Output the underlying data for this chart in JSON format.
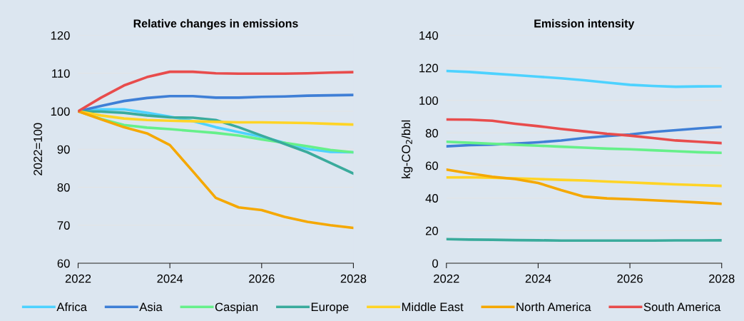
{
  "chart_data": [
    {
      "type": "line",
      "title": "Relative changes in emissions",
      "ylabel": "2022=100",
      "x": [
        2022,
        2022.5,
        2023,
        2023.5,
        2024,
        2024.5,
        2025,
        2025.5,
        2026,
        2026.5,
        2027,
        2027.5,
        2028
      ],
      "xlim": [
        2022,
        2028
      ],
      "xticks": [
        2022,
        2024,
        2026,
        2028
      ],
      "ylim": [
        60,
        120
      ],
      "yticks": [
        60,
        70,
        80,
        90,
        100,
        110,
        120
      ],
      "grid": "y",
      "legend": "bottom",
      "line_style": "solid",
      "marker": "none",
      "series": [
        {
          "name": "Africa",
          "color": "#4dd2ff",
          "values": [
            100,
            100.5,
            100.5,
            99.6,
            98.6,
            97.4,
            95.8,
            94.5,
            93.3,
            91.7,
            90.1,
            89.3,
            89.2
          ]
        },
        {
          "name": "Asia",
          "color": "#3f7fd6",
          "values": [
            100,
            101.4,
            102.7,
            103.5,
            104,
            104,
            103.6,
            103.6,
            103.8,
            103.9,
            104.1,
            104.2,
            104.3
          ]
        },
        {
          "name": "Caspian",
          "color": "#66f08a",
          "values": [
            100,
            98,
            96.4,
            95.7,
            95.3,
            94.8,
            94.3,
            93.6,
            92.6,
            91.7,
            90.8,
            89.8,
            89.2
          ]
        },
        {
          "name": "Europe",
          "color": "#3aab9c",
          "values": [
            100,
            99.9,
            99.6,
            98.9,
            98.4,
            98.3,
            97.7,
            95.8,
            93.6,
            91.4,
            89.2,
            86.4,
            83.6
          ]
        },
        {
          "name": "Middle East",
          "color": "#ffd426",
          "values": [
            100,
            98.9,
            98.1,
            97.7,
            97.5,
            97.4,
            97.2,
            97.1,
            97.1,
            97,
            96.9,
            96.7,
            96.5
          ]
        },
        {
          "name": "North America",
          "color": "#f5a800",
          "values": [
            100,
            97.9,
            95.8,
            94.2,
            91.1,
            84.2,
            77.2,
            74.7,
            74,
            72.2,
            70.9,
            70,
            69.3
          ]
        },
        {
          "name": "South America",
          "color": "#e84c4c",
          "values": [
            100,
            103.6,
            106.8,
            109,
            110.4,
            110.4,
            110,
            109.9,
            109.9,
            109.9,
            110,
            110.2,
            110.3
          ]
        }
      ]
    },
    {
      "type": "line",
      "title": "Emission intensity",
      "ylabel": "kg-CO$_{2}$/bbl",
      "x": [
        2022,
        2022.5,
        2023,
        2023.5,
        2024,
        2024.5,
        2025,
        2025.5,
        2026,
        2026.5,
        2027,
        2027.5,
        2028
      ],
      "xlim": [
        2022,
        2028
      ],
      "xticks": [
        2022,
        2024,
        2026,
        2028
      ],
      "ylim": [
        0,
        140
      ],
      "yticks": [
        0,
        20,
        40,
        60,
        80,
        100,
        120,
        140
      ],
      "grid": "y",
      "line_style": "solid",
      "marker": "none",
      "series": [
        {
          "color": "#4dd2ff",
          "values": [
            118.1,
            117.5,
            116.5,
            115.6,
            114.6,
            113.6,
            112.4,
            111,
            109.6,
            108.9,
            108.4,
            108.6,
            108.7
          ]
        },
        {
          "color": "#3f7fd6",
          "values": [
            71.8,
            72.5,
            72.9,
            73.5,
            74.3,
            75.4,
            76.9,
            78.1,
            79.1,
            80.6,
            81.7,
            82.8,
            83.8
          ]
        },
        {
          "color": "#66f08a",
          "values": [
            74.6,
            74,
            73.4,
            72.8,
            72.2,
            71.6,
            71,
            70.4,
            70,
            69.4,
            68.8,
            68.2,
            67.8
          ]
        },
        {
          "color": "#3aab9c",
          "values": [
            14.8,
            14.5,
            14.4,
            14.2,
            14.1,
            13.9,
            13.9,
            13.9,
            13.9,
            13.9,
            14,
            14,
            14.1
          ]
        },
        {
          "color": "#ffd426",
          "values": [
            52.7,
            52.8,
            52.5,
            52.1,
            51.7,
            51.2,
            50.8,
            50.2,
            49.6,
            49,
            48.4,
            48,
            47.5
          ]
        },
        {
          "color": "#f5a800",
          "values": [
            57.5,
            55.2,
            53.1,
            51.7,
            49.3,
            44.9,
            40.9,
            39.8,
            39.3,
            38.7,
            38,
            37.3,
            36.5
          ]
        },
        {
          "color": "#e84c4c",
          "values": [
            88.3,
            88.2,
            87.5,
            85.7,
            84.2,
            82.5,
            81,
            79.5,
            78.4,
            76.9,
            75.4,
            74.6,
            73.8
          ]
        }
      ]
    }
  ]
}
